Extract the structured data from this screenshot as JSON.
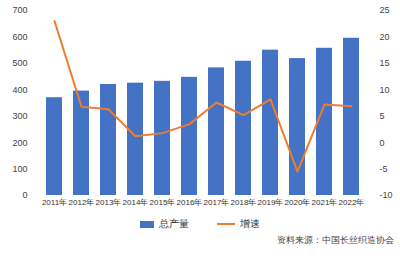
{
  "chart_data": {
    "type": "bar",
    "categories": [
      "2011年",
      "2012年",
      "2013年",
      "2014年",
      "2015年",
      "2016年",
      "2017年",
      "2018年",
      "2019年",
      "2020年",
      "2021年",
      "2022年"
    ],
    "series": [
      {
        "name": "总产量",
        "type": "bar",
        "color": "#4472c4",
        "values": [
          370,
          395,
          420,
          425,
          432,
          447,
          483,
          508,
          550,
          518,
          557,
          595
        ]
      },
      {
        "name": "增速",
        "type": "line",
        "color": "#ed7d31",
        "axis": "y2",
        "values": [
          23,
          6.8,
          6.3,
          1.2,
          1.8,
          3.5,
          7.6,
          5.2,
          8.2,
          -5.5,
          7.2,
          6.9
        ]
      }
    ],
    "ylim": [
      0,
      700
    ],
    "yticks": [
      0,
      100,
      200,
      300,
      400,
      500,
      600,
      700
    ],
    "y2lim": [
      -10,
      25
    ],
    "y2ticks": [
      -10,
      -5,
      0,
      5,
      10,
      15,
      20,
      25
    ],
    "grid": false,
    "legend": "bottom",
    "caption": "资料来源：中国长丝织造协会"
  }
}
